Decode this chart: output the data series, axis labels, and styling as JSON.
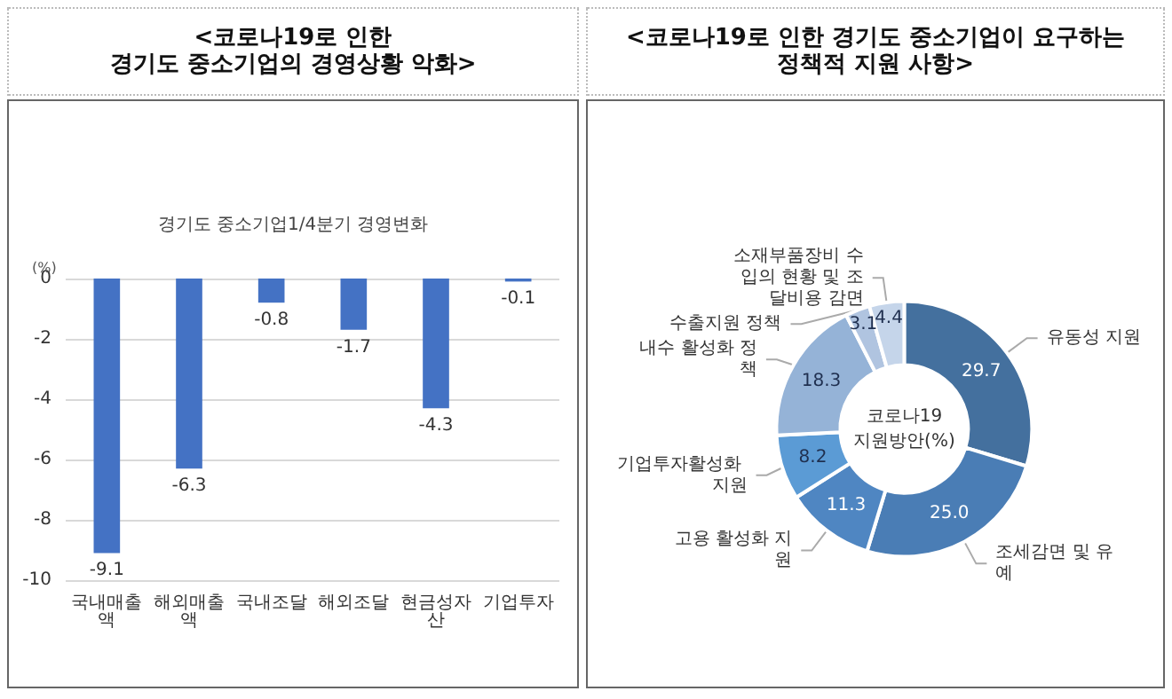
{
  "chart_data": [
    {
      "type": "bar",
      "title": "<코로나19로 인한\n경기도 중소기업의 경영상황 악화>",
      "subtitle": "경기도 중소기업1/4분기 경영변화",
      "ylabel": "(%)",
      "categories": [
        "국내매출액",
        "해외매출액",
        "국내조달",
        "해외조달",
        "현금성자산",
        "기업투자"
      ],
      "values": [
        -9.1,
        -6.3,
        -0.8,
        -1.7,
        -4.3,
        -0.1
      ],
      "color": "#4472c4",
      "ylim": [
        -10,
        0
      ],
      "yticks": [
        -10,
        -8,
        -6,
        -4,
        -2,
        0
      ],
      "grid": "y",
      "data_labels": true,
      "legend": false
    },
    {
      "type": "donut",
      "title": "<코로나19로 인한 경기도 중소기업이 요구하는\n정책적 지원 사항>",
      "categories": [
        "유동성 지원",
        "조세감면 및 유예",
        "고용 활성화 지원",
        "기업투자활성화 지원",
        "내수 활성화 정책",
        "수출지원 정책",
        "소재부품장비 수입의 현황 및 조달비용 감면"
      ],
      "values": [
        29.7,
        25.0,
        11.3,
        8.2,
        18.3,
        3.1,
        4.4
      ],
      "value_labels": [
        "29.7",
        "25.0",
        "11.3",
        "8.2",
        "18.3",
        "3.1",
        "4.4"
      ],
      "colors": [
        "#44709e",
        "#4a7db5",
        "#4f86c2",
        "#5b9bd5",
        "#95b3d7",
        "#b0c4e0",
        "#c5d5ea"
      ],
      "annotations": [
        "코로나19\n지원방안(%)"
      ],
      "legend": false
    }
  ]
}
